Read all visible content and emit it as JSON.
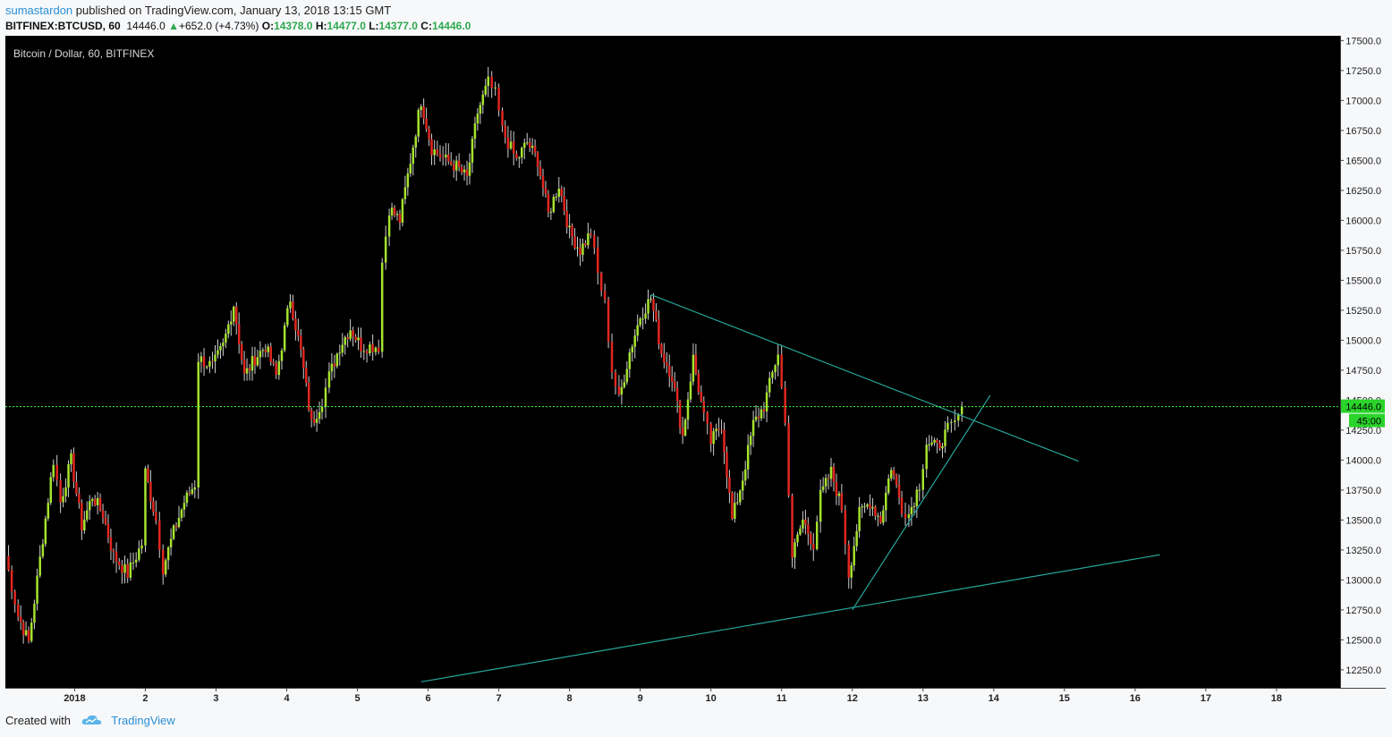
{
  "header": {
    "publisher": "sumastardon",
    "published_text": "published on TradingView.com, January 13, 2018 13:15 GMT",
    "symbol": "BITFINEX:BTCUSD, 60",
    "last_price": "14446.0",
    "change_arrow": "▲",
    "change": "+652.0 (+4.73%)",
    "open_label": "O:",
    "open": "14378.0",
    "high_label": "H:",
    "high": "14477.0",
    "low_label": "L:",
    "low": "14377.0",
    "close_label": "C:",
    "close": "14446.0"
  },
  "footer": {
    "created_with": "Created with",
    "brand": "TradingView"
  },
  "chart_data": {
    "type": "candlestick",
    "title": "Bitcoin / Dollar, 60, BITFINEX",
    "y_ticks": [
      12250.0,
      12500.0,
      12750.0,
      13000.0,
      13250.0,
      13500.0,
      13750.0,
      14000.0,
      14250.0,
      14500.0,
      14750.0,
      15000.0,
      15250.0,
      15500.0,
      15750.0,
      16000.0,
      16250.0,
      16500.0,
      16750.0,
      17000.0,
      17250.0,
      17500.0
    ],
    "ylim": [
      12100,
      17540
    ],
    "x_ticks": [
      {
        "label": "2018",
        "day": 1
      },
      {
        "label": "2",
        "day": 2
      },
      {
        "label": "3",
        "day": 3
      },
      {
        "label": "4",
        "day": 4
      },
      {
        "label": "5",
        "day": 5
      },
      {
        "label": "6",
        "day": 6
      },
      {
        "label": "7",
        "day": 7
      },
      {
        "label": "8",
        "day": 8
      },
      {
        "label": "9",
        "day": 9
      },
      {
        "label": "10",
        "day": 10
      },
      {
        "label": "11",
        "day": 11
      },
      {
        "label": "12",
        "day": 12
      },
      {
        "label": "13",
        "day": 13
      },
      {
        "label": "14",
        "day": 14
      },
      {
        "label": "15",
        "day": 15
      },
      {
        "label": "16",
        "day": 16
      },
      {
        "label": "17",
        "day": 17
      },
      {
        "label": "18",
        "day": 18
      }
    ],
    "xlim_days": [
      0.02,
      18.9
    ],
    "price_path": [
      [
        0.02,
        13200
      ],
      [
        0.2,
        12700
      ],
      [
        0.35,
        12480
      ],
      [
        0.55,
        13350
      ],
      [
        0.7,
        14000
      ],
      [
        0.8,
        13650
      ],
      [
        0.95,
        14000
      ],
      [
        1.1,
        13450
      ],
      [
        1.25,
        13700
      ],
      [
        1.4,
        13550
      ],
      [
        1.55,
        13200
      ],
      [
        1.75,
        13050
      ],
      [
        1.95,
        13300
      ],
      [
        2.0,
        13900
      ],
      [
        2.15,
        13500
      ],
      [
        2.25,
        13100
      ],
      [
        2.4,
        13400
      ],
      [
        2.55,
        13650
      ],
      [
        2.7,
        13800
      ],
      [
        2.75,
        14850
      ],
      [
        2.95,
        14780
      ],
      [
        3.1,
        14950
      ],
      [
        3.25,
        15300
      ],
      [
        3.4,
        14700
      ],
      [
        3.55,
        14850
      ],
      [
        3.7,
        14950
      ],
      [
        3.85,
        14700
      ],
      [
        4.05,
        15350
      ],
      [
        4.2,
        14900
      ],
      [
        4.35,
        14300
      ],
      [
        4.5,
        14500
      ],
      [
        4.6,
        14700
      ],
      [
        4.75,
        14950
      ],
      [
        4.9,
        15100
      ],
      [
        5.05,
        14950
      ],
      [
        5.3,
        14950
      ],
      [
        5.35,
        15650
      ],
      [
        5.45,
        16100
      ],
      [
        5.6,
        16000
      ],
      [
        5.75,
        16500
      ],
      [
        5.9,
        17000
      ],
      [
        6.05,
        16600
      ],
      [
        6.25,
        16500
      ],
      [
        6.4,
        16450
      ],
      [
        6.55,
        16350
      ],
      [
        6.7,
        16900
      ],
      [
        6.85,
        17150
      ],
      [
        6.95,
        17050
      ],
      [
        7.05,
        16750
      ],
      [
        7.25,
        16500
      ],
      [
        7.4,
        16650
      ],
      [
        7.55,
        16500
      ],
      [
        7.7,
        16050
      ],
      [
        7.85,
        16300
      ],
      [
        8.0,
        15900
      ],
      [
        8.15,
        15750
      ],
      [
        8.3,
        15900
      ],
      [
        8.4,
        15550
      ],
      [
        8.5,
        15300
      ],
      [
        8.6,
        14750
      ],
      [
        8.7,
        14500
      ],
      [
        8.85,
        14900
      ],
      [
        9.0,
        15200
      ],
      [
        9.15,
        15350
      ],
      [
        9.3,
        14900
      ],
      [
        9.45,
        14700
      ],
      [
        9.6,
        14200
      ],
      [
        9.75,
        14850
      ],
      [
        9.9,
        14350
      ],
      [
        10.0,
        14150
      ],
      [
        10.15,
        14300
      ],
      [
        10.3,
        13500
      ],
      [
        10.45,
        13850
      ],
      [
        10.6,
        14300
      ],
      [
        10.75,
        14450
      ],
      [
        10.95,
        14900
      ],
      [
        11.05,
        14300
      ],
      [
        11.15,
        13200
      ],
      [
        11.3,
        13500
      ],
      [
        11.45,
        13300
      ],
      [
        11.55,
        13700
      ],
      [
        11.7,
        13900
      ],
      [
        11.85,
        13600
      ],
      [
        11.95,
        13050
      ],
      [
        12.1,
        13550
      ],
      [
        12.25,
        13650
      ],
      [
        12.4,
        13500
      ],
      [
        12.55,
        13950
      ],
      [
        12.7,
        13600
      ],
      [
        12.8,
        13550
      ],
      [
        12.95,
        13800
      ],
      [
        13.05,
        14150
      ],
      [
        13.2,
        14100
      ],
      [
        13.35,
        14250
      ],
      [
        13.45,
        14300
      ],
      [
        13.55,
        14446
      ]
    ],
    "last_price": 14446.0,
    "last_price_label": "14446.0",
    "countdown_label": "45:00",
    "trendlines": [
      {
        "from": [
          9.15,
          15380
        ],
        "to": [
          15.2,
          13990
        ]
      },
      {
        "from": [
          5.9,
          12150
        ],
        "to": [
          16.35,
          13210
        ]
      },
      {
        "from": [
          12.0,
          12750
        ],
        "to": [
          13.95,
          14540
        ]
      }
    ],
    "colors": {
      "up": "#a6e22e",
      "down": "#e0271f",
      "wick": "#cfcfcf",
      "line": "#26a69a",
      "price_line": "#3cff3c"
    },
    "grid": false
  }
}
